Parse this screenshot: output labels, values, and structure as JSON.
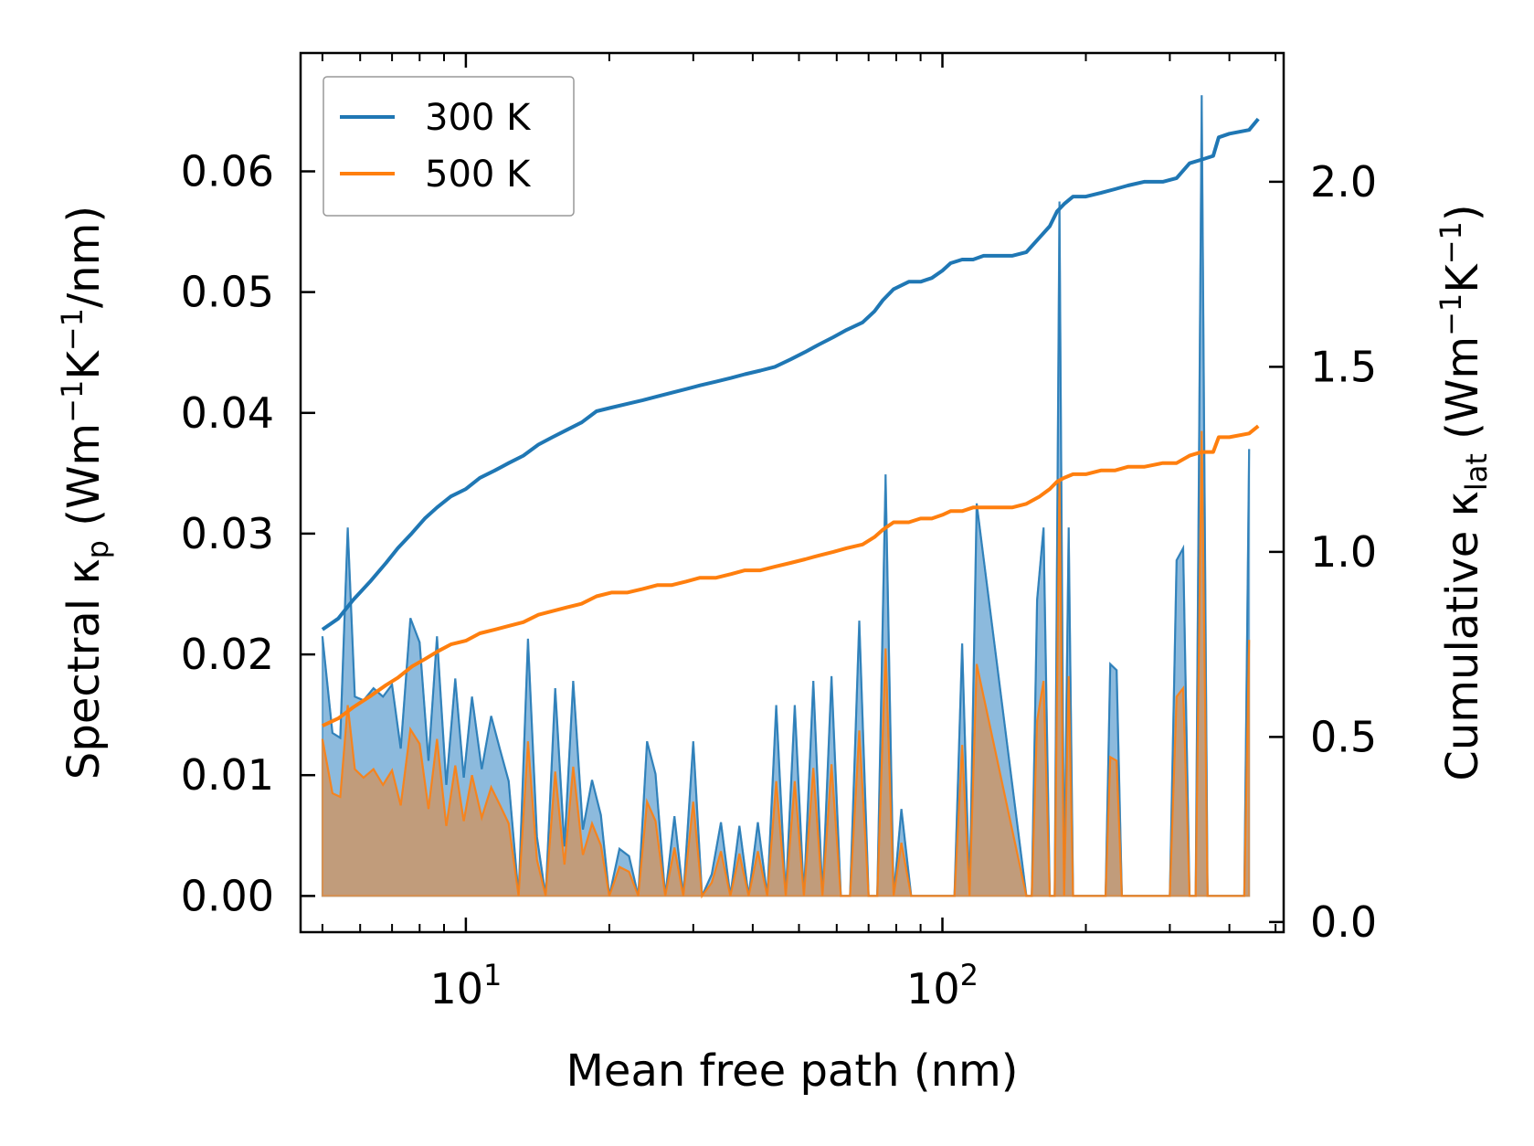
{
  "chart_data": {
    "type": "line",
    "xlabel": "Mean free path (nm)",
    "ylabel_left": {
      "main": "Spectral κ",
      "sub": "p",
      "unit_pre": " (Wm",
      "sup1": "−1",
      "unit_mid": "K",
      "sup2": "−1",
      "unit_post": "/nm)"
    },
    "ylabel_right": {
      "main": "Cumulative κ",
      "sub": "lat",
      "unit_pre": " (Wm",
      "sup1": "−1",
      "unit_mid": "K",
      "sup2": "−1",
      "unit_post": ")"
    },
    "xscale": "log",
    "xlim": [
      4.5,
      520
    ],
    "ylim_left": [
      -0.003,
      0.0698
    ],
    "ylim_right": [
      -0.0275,
      2.348
    ],
    "x_ticks": [
      {
        "base": "10",
        "exp": "1",
        "value": 10
      },
      {
        "base": "10",
        "exp": "2",
        "value": 100
      }
    ],
    "y_left_ticks": [
      "0.00",
      "0.01",
      "0.02",
      "0.03",
      "0.04",
      "0.05",
      "0.06"
    ],
    "y_left_tick_values": [
      0,
      0.01,
      0.02,
      0.03,
      0.04,
      0.05,
      0.06
    ],
    "y_right_ticks": [
      "0.0",
      "0.5",
      "1.0",
      "1.5",
      "2.0"
    ],
    "y_right_tick_values": [
      0,
      0.5,
      1.0,
      1.5,
      2.0
    ],
    "legend": {
      "location": "upper-left",
      "entries": [
        "300 K",
        "500 K"
      ]
    },
    "colors": {
      "c300": "#1f77b4",
      "c500": "#ff7f0e",
      "fill300": "#7fb2d9",
      "fill500": "#c49a75"
    },
    "series": [
      {
        "name": "300 K",
        "spectral": {
          "x": [
            5.0,
            5.25,
            5.45,
            5.65,
            5.85,
            6.1,
            6.4,
            6.7,
            7.0,
            7.3,
            7.65,
            8.0,
            8.35,
            8.7,
            9.1,
            9.5,
            9.9,
            10.3,
            10.8,
            11.3,
            11.8,
            12.3,
            12.9,
            13.5,
            14.1,
            14.7,
            15.4,
            16.1,
            16.8,
            17.6,
            18.4,
            19.2,
            20.0,
            21.0,
            22.0,
            23.0,
            24.0,
            25.0,
            26.2,
            27.4,
            28.6,
            30.0,
            31.3,
            32.8,
            34.3,
            35.9,
            37.5,
            39.2,
            41.0,
            42.9,
            44.8,
            46.9,
            49.0,
            51.2,
            53.6,
            56.0,
            58.5,
            61.2,
            64.0,
            66.9,
            70.0,
            73.0,
            76.0,
            79.0,
            82.0,
            86.0,
            90.0,
            94.0,
            98.0,
            102.0,
            106.0,
            110.0,
            114.0,
            118.0,
            150.0,
            154.0,
            158.0,
            163.0,
            168.0,
            172.0,
            176.0,
            180.0,
            184.0,
            188.0,
            192.0,
            220.0,
            225.0,
            232.0,
            238.0,
            244.0,
            300.0,
            310.0,
            320.0,
            330.0,
            340.0,
            350.0,
            360.0,
            370.0,
            380.0,
            420.0,
            430.0,
            440.0
          ],
          "y": [
            0.0215,
            0.0135,
            0.0131,
            0.0305,
            0.0165,
            0.0162,
            0.0172,
            0.0165,
            0.0175,
            0.0122,
            0.023,
            0.021,
            0.0112,
            0.0215,
            0.0092,
            0.018,
            0.0098,
            0.0165,
            0.0105,
            0.0149,
            0.0121,
            0.0095,
            0.0,
            0.0213,
            0.0049,
            0.0,
            0.0172,
            0.0041,
            0.0178,
            0.0055,
            0.0096,
            0.0067,
            0.0,
            0.0039,
            0.0033,
            0.0,
            0.0128,
            0.0101,
            0.0,
            0.0066,
            0.0,
            0.0128,
            0.0,
            0.0018,
            0.0061,
            0.0,
            0.0058,
            0.0,
            0.0061,
            0.0,
            0.0158,
            0.0,
            0.0158,
            0.0,
            0.0178,
            0.0,
            0.0182,
            0.0,
            0.0,
            0.0228,
            0.0,
            0.0,
            0.0349,
            0.0,
            0.0072,
            0.0,
            0.0,
            0.0,
            0.0,
            0.0,
            0.0,
            0.0209,
            0.0,
            0.0325,
            0.0,
            0.0,
            0.0245,
            0.0305,
            0.0,
            0.0,
            0.0575,
            0.0,
            0.0305,
            0.0,
            0.0,
            0.0,
            0.0192,
            0.0187,
            0.0,
            0.0,
            0.0,
            0.0278,
            0.0288,
            0.0,
            0.0,
            0.0663,
            0.0,
            0.0,
            0.0,
            0.0,
            0.0,
            0.037
          ]
        },
        "cumulative": {
          "x": [
            5.0,
            5.4,
            5.8,
            6.3,
            6.8,
            7.2,
            7.7,
            8.2,
            8.7,
            9.3,
            10.0,
            10.7,
            11.5,
            12.3,
            13.2,
            14.2,
            15.2,
            16.3,
            17.5,
            18.8,
            20.2,
            21.8,
            23.5,
            25.2,
            27.0,
            29.0,
            31.0,
            33.5,
            36.0,
            38.5,
            41.5,
            44.5,
            48.0,
            51.5,
            55.0,
            59.0,
            63.0,
            68.0,
            72.0,
            75.0,
            79.0,
            85.0,
            90.0,
            95.0,
            100.0,
            104.0,
            110.0,
            116.0,
            122.0,
            130.0,
            140.0,
            150.0,
            160.0,
            168.0,
            174.0,
            180.0,
            188.0,
            200.0,
            215.0,
            230.0,
            245.0,
            265.0,
            290.0,
            310.0,
            330.0,
            350.0,
            370.0,
            380.0,
            400.0,
            440.0,
            460.0
          ],
          "y": [
            0.79,
            0.82,
            0.87,
            0.92,
            0.97,
            1.01,
            1.05,
            1.09,
            1.12,
            1.15,
            1.17,
            1.2,
            1.22,
            1.24,
            1.26,
            1.29,
            1.31,
            1.33,
            1.35,
            1.38,
            1.39,
            1.4,
            1.41,
            1.42,
            1.43,
            1.44,
            1.45,
            1.46,
            1.47,
            1.48,
            1.49,
            1.5,
            1.52,
            1.54,
            1.56,
            1.58,
            1.6,
            1.62,
            1.65,
            1.68,
            1.71,
            1.73,
            1.73,
            1.74,
            1.76,
            1.78,
            1.79,
            1.79,
            1.8,
            1.8,
            1.8,
            1.81,
            1.85,
            1.88,
            1.92,
            1.94,
            1.96,
            1.96,
            1.97,
            1.98,
            1.99,
            2.0,
            2.0,
            2.01,
            2.05,
            2.06,
            2.07,
            2.12,
            2.13,
            2.14,
            2.17
          ]
        }
      },
      {
        "name": "500 K",
        "spectral": {
          "x": [
            5.0,
            5.25,
            5.45,
            5.65,
            5.85,
            6.1,
            6.4,
            6.7,
            7.0,
            7.3,
            7.65,
            8.0,
            8.35,
            8.7,
            9.1,
            9.5,
            9.9,
            10.3,
            10.8,
            11.3,
            11.8,
            12.3,
            12.9,
            13.5,
            14.1,
            14.7,
            15.4,
            16.1,
            16.8,
            17.6,
            18.4,
            19.2,
            20.0,
            21.0,
            22.0,
            23.0,
            24.0,
            25.0,
            26.2,
            27.4,
            28.6,
            30.0,
            31.3,
            32.8,
            34.3,
            35.9,
            37.5,
            39.2,
            41.0,
            42.9,
            44.8,
            46.9,
            49.0,
            51.2,
            53.6,
            56.0,
            58.5,
            61.2,
            64.0,
            66.9,
            70.0,
            73.0,
            76.0,
            79.0,
            82.0,
            86.0,
            90.0,
            94.0,
            98.0,
            102.0,
            106.0,
            110.0,
            114.0,
            118.0,
            150.0,
            154.0,
            158.0,
            163.0,
            168.0,
            172.0,
            176.0,
            180.0,
            184.0,
            188.0,
            192.0,
            220.0,
            225.0,
            232.0,
            238.0,
            244.0,
            300.0,
            310.0,
            320.0,
            330.0,
            340.0,
            350.0,
            360.0,
            370.0,
            380.0,
            420.0,
            430.0,
            440.0
          ],
          "y": [
            0.013,
            0.0085,
            0.0082,
            0.0158,
            0.0105,
            0.0098,
            0.0105,
            0.0092,
            0.0104,
            0.0075,
            0.0138,
            0.0126,
            0.0072,
            0.013,
            0.0058,
            0.0108,
            0.0062,
            0.01,
            0.0065,
            0.009,
            0.0075,
            0.006,
            0.0,
            0.0128,
            0.003,
            0.0,
            0.0103,
            0.0026,
            0.0107,
            0.0034,
            0.006,
            0.0042,
            0.0,
            0.0024,
            0.002,
            0.0,
            0.0078,
            0.0062,
            0.0,
            0.004,
            0.0,
            0.0078,
            0.0,
            0.0011,
            0.0037,
            0.0,
            0.0035,
            0.0,
            0.0037,
            0.0,
            0.0095,
            0.0,
            0.0095,
            0.0,
            0.0106,
            0.0,
            0.0109,
            0.0,
            0.0,
            0.0137,
            0.0,
            0.0,
            0.0205,
            0.0,
            0.0044,
            0.0,
            0.0,
            0.0,
            0.0,
            0.0,
            0.0,
            0.0125,
            0.0,
            0.0192,
            0.0,
            0.0,
            0.0145,
            0.0178,
            0.0,
            0.0,
            0.0345,
            0.0,
            0.0182,
            0.0,
            0.0,
            0.0,
            0.0115,
            0.0112,
            0.0,
            0.0,
            0.0,
            0.0165,
            0.0172,
            0.0,
            0.0,
            0.0385,
            0.0,
            0.0,
            0.0,
            0.0,
            0.0,
            0.0212
          ]
        },
        "cumulative": {
          "x": [
            5.0,
            5.4,
            5.8,
            6.3,
            6.8,
            7.2,
            7.7,
            8.2,
            8.7,
            9.3,
            10.0,
            10.7,
            11.5,
            12.3,
            13.2,
            14.2,
            15.2,
            16.3,
            17.5,
            18.8,
            20.2,
            21.8,
            23.5,
            25.2,
            27.0,
            29.0,
            31.0,
            33.5,
            36.0,
            38.5,
            41.5,
            44.5,
            48.0,
            51.5,
            55.0,
            59.0,
            63.0,
            68.0,
            72.0,
            75.0,
            79.0,
            85.0,
            90.0,
            95.0,
            100.0,
            104.0,
            110.0,
            116.0,
            122.0,
            130.0,
            140.0,
            150.0,
            160.0,
            168.0,
            174.0,
            180.0,
            188.0,
            200.0,
            215.0,
            230.0,
            245.0,
            265.0,
            290.0,
            310.0,
            330.0,
            350.0,
            370.0,
            380.0,
            400.0,
            440.0,
            460.0
          ],
          "y": [
            0.53,
            0.55,
            0.58,
            0.61,
            0.64,
            0.66,
            0.69,
            0.71,
            0.73,
            0.75,
            0.76,
            0.78,
            0.79,
            0.8,
            0.81,
            0.83,
            0.84,
            0.85,
            0.86,
            0.88,
            0.89,
            0.89,
            0.9,
            0.91,
            0.91,
            0.92,
            0.93,
            0.93,
            0.94,
            0.95,
            0.95,
            0.96,
            0.97,
            0.98,
            0.99,
            1.0,
            1.01,
            1.02,
            1.04,
            1.06,
            1.08,
            1.08,
            1.09,
            1.09,
            1.1,
            1.11,
            1.11,
            1.12,
            1.12,
            1.12,
            1.12,
            1.13,
            1.15,
            1.17,
            1.19,
            1.2,
            1.21,
            1.21,
            1.22,
            1.22,
            1.23,
            1.23,
            1.24,
            1.24,
            1.26,
            1.27,
            1.27,
            1.31,
            1.31,
            1.32,
            1.34
          ]
        }
      }
    ]
  }
}
